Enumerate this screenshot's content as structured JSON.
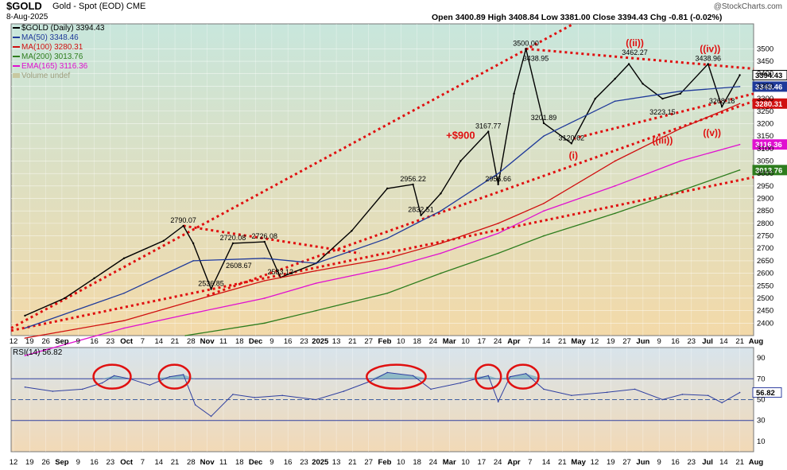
{
  "header": {
    "symbol": "$GOLD",
    "name": "Gold - Spot (EOD)",
    "exchange": "CME",
    "date": "8-Aug-2025",
    "ohlc": "Open 3400.89  High 3408.84  Low 3381.00  Close 3394.43  Chg -0.81 (-0.02%)",
    "credit": "@StockCharts.com"
  },
  "legend": [
    {
      "label": "$GOLD (Daily) 3394.43",
      "color": "#000000"
    },
    {
      "label": "MA(50) 3348.46",
      "color": "#1f3a9a"
    },
    {
      "label": "MA(100) 3280.31",
      "color": "#d01010"
    },
    {
      "label": "MA(200) 3013.76",
      "color": "#2e7d1e"
    },
    {
      "label": "EMA(165) 3116.36",
      "color": "#e010d0"
    },
    {
      "label": "Volume undef",
      "color": "#b8b890"
    }
  ],
  "colors": {
    "price": "#000000",
    "ma50": "#1f3a9a",
    "ma100": "#d01010",
    "ma200": "#2e7d1e",
    "ema165": "#e010d0",
    "trend": "#e01010",
    "rsi": "#3040a0",
    "rsi_fill": "#7ab0c0",
    "bg_top": "#c8e6dc",
    "bg_bottom": "#f3d9a8"
  },
  "chart_data": [
    {
      "type": "line",
      "title": "$GOLD Gold - Spot (EOD) CME",
      "ylim": [
        2350,
        3600
      ],
      "yticks": [
        2400,
        2450,
        2500,
        2550,
        2600,
        2650,
        2700,
        2750,
        2800,
        2850,
        2900,
        2950,
        3000,
        3050,
        3100,
        3150,
        3200,
        3250,
        3300,
        3350,
        3400,
        3450,
        3500
      ],
      "ytick_labels": [
        "2400",
        "2450",
        "2500",
        "2550",
        "2600",
        "2650",
        "2700",
        "2750",
        "2800",
        "2850",
        "2900",
        "2950",
        "3000",
        "3050",
        "3100",
        "3150",
        "3200",
        "3250",
        "3300",
        "3350",
        "3400",
        "3450",
        "3500"
      ],
      "xtick_labels": [
        "12",
        "19",
        "26",
        "Sep",
        "9",
        "16",
        "23",
        "Oct",
        "7",
        "14",
        "21",
        "28",
        "Nov",
        "11",
        "18",
        "Dec",
        "9",
        "16",
        "23",
        "2025",
        "13",
        "21",
        "27",
        "Feb",
        "10",
        "18",
        "24",
        "Mar",
        "10",
        "17",
        "24",
        "Apr",
        "7",
        "14",
        "21",
        "May",
        "12",
        "19",
        "27",
        "Jun",
        "9",
        "16",
        "23",
        "Jul",
        "14",
        "21",
        "Aug"
      ],
      "series": [
        {
          "name": "$GOLD (Daily) 3394.43",
          "key": "price",
          "x": [
            "2024-08-12",
            "2024-09-01",
            "2024-09-16",
            "2024-10-01",
            "2024-10-21",
            "2024-10-31",
            "2024-11-05",
            "2024-11-14",
            "2024-11-25",
            "2024-12-11",
            "2024-12-19",
            "2025-01-06",
            "2025-01-24",
            "2025-02-11",
            "2025-02-24",
            "2025-02-28",
            "2025-03-10",
            "2025-03-20",
            "2025-04-03",
            "2025-04-08",
            "2025-04-16",
            "2025-04-22",
            "2025-05-01",
            "2025-05-15",
            "2025-05-27",
            "2025-06-06",
            "2025-06-13",
            "2025-06-20",
            "2025-06-30",
            "2025-07-09",
            "2025-07-23",
            "2025-07-30",
            "2025-08-08"
          ],
          "values": [
            2430,
            2500,
            2580,
            2660,
            2730,
            2790,
            2720,
            2536.85,
            2720.08,
            2726.08,
            2583.12,
            2640,
            2770,
            2940,
            2956.22,
            2832.51,
            2920,
            3050,
            3167.77,
            2956.66,
            3320,
            3500,
            3201.89,
            3120.62,
            3300,
            3380,
            3438.95,
            3360,
            3300,
            3320,
            3438.96,
            3268.18,
            3394.43
          ]
        },
        {
          "name": "MA(50) 3348.46",
          "key": "ma50",
          "x": [
            "2024-08-12",
            "2024-10-01",
            "2024-11-05",
            "2024-12-11",
            "2025-01-06",
            "2025-02-11",
            "2025-03-10",
            "2025-04-08",
            "2025-05-01",
            "2025-06-06",
            "2025-07-09",
            "2025-08-08"
          ],
          "values": [
            2380,
            2520,
            2650,
            2660,
            2640,
            2740,
            2850,
            3000,
            3150,
            3290,
            3330,
            3348.46
          ]
        },
        {
          "name": "MA(100) 3280.31",
          "key": "ma100",
          "x": [
            "2024-08-12",
            "2024-10-01",
            "2024-11-05",
            "2024-12-11",
            "2025-01-06",
            "2025-02-11",
            "2025-03-10",
            "2025-04-08",
            "2025-05-01",
            "2025-06-06",
            "2025-07-09",
            "2025-08-08"
          ],
          "values": [
            2340,
            2410,
            2490,
            2570,
            2610,
            2660,
            2720,
            2800,
            2880,
            3050,
            3180,
            3280.31
          ]
        },
        {
          "name": "EMA(165) 3116.36",
          "key": "ema165",
          "x": [
            "2024-08-12",
            "2024-10-01",
            "2024-11-05",
            "2024-12-11",
            "2025-01-06",
            "2025-02-11",
            "2025-03-10",
            "2025-04-08",
            "2025-05-01",
            "2025-06-06",
            "2025-07-09",
            "2025-08-08"
          ],
          "values": [
            2270,
            2380,
            2440,
            2500,
            2560,
            2620,
            2680,
            2760,
            2850,
            2950,
            3050,
            3116.36
          ]
        },
        {
          "name": "MA(200) 3013.76",
          "key": "ma200",
          "x": [
            "2024-11-01",
            "2024-12-11",
            "2025-01-06",
            "2025-02-11",
            "2025-03-10",
            "2025-04-08",
            "2025-05-01",
            "2025-06-06",
            "2025-07-09",
            "2025-08-08"
          ],
          "values": [
            2350,
            2400,
            2450,
            2520,
            2600,
            2680,
            2750,
            2840,
            2930,
            3013.76
          ]
        }
      ],
      "trendlines": [
        {
          "name": "upper-channel",
          "x": [
            "2024-08-05",
            "2025-05-16"
          ],
          "values": [
            2380,
            3600
          ]
        },
        {
          "name": "long-support",
          "x": [
            "2024-08-05",
            "2025-08-15"
          ],
          "values": [
            2370,
            2985
          ]
        },
        {
          "name": "support-nov-apr",
          "x": [
            "2024-11-12",
            "2025-08-15"
          ],
          "values": [
            2510,
            3290
          ]
        },
        {
          "name": "support-may-aug",
          "x": [
            "2025-05-16",
            "2025-08-15"
          ],
          "values": [
            3140,
            3320
          ]
        },
        {
          "name": "resistance-apr-aug",
          "x": [
            "2025-04-22",
            "2025-08-15"
          ],
          "values": [
            3500,
            3420
          ]
        },
        {
          "name": "pennant-top",
          "x": [
            "2024-10-31",
            "2025-01-28"
          ],
          "values": [
            2790,
            2680
          ]
        }
      ],
      "price_labels": [
        {
          "text": "2790.07",
          "x": "2024-10-31",
          "y": 2790
        },
        {
          "text": "2720.08",
          "x": "2024-11-25",
          "y": 2720.08
        },
        {
          "text": "2726.08",
          "x": "2024-12-11",
          "y": 2726.08
        },
        {
          "text": "2608.67",
          "x": "2024-11-28",
          "y": 2608.67
        },
        {
          "text": "2583.12",
          "x": "2024-12-19",
          "y": 2583.12
        },
        {
          "text": "2536.85",
          "x": "2024-11-14",
          "y": 2536.85
        },
        {
          "text": "2956.22",
          "x": "2025-02-24",
          "y": 2956.22
        },
        {
          "text": "2832.51",
          "x": "2025-02-28",
          "y": 2832.51
        },
        {
          "text": "3167.77",
          "x": "2025-04-03",
          "y": 3167.77
        },
        {
          "text": "2956.66",
          "x": "2025-04-08",
          "y": 2956.66
        },
        {
          "text": "3500.00",
          "x": "2025-04-22",
          "y": 3500
        },
        {
          "text": "3438.95",
          "x": "2025-04-27",
          "y": 3438.95
        },
        {
          "text": "3201.89",
          "x": "2025-05-01",
          "y": 3201.89
        },
        {
          "text": "3120.62",
          "x": "2025-05-15",
          "y": 3120.62
        },
        {
          "text": "3462.27",
          "x": "2025-06-16",
          "y": 3462.27
        },
        {
          "text": "3223.15",
          "x": "2025-06-30",
          "y": 3223.15
        },
        {
          "text": "3438.96",
          "x": "2025-07-23",
          "y": 3438.96
        },
        {
          "text": "3268.18",
          "x": "2025-07-30",
          "y": 3268.18
        }
      ],
      "wave_labels": [
        {
          "text": "((ii))",
          "x": "2025-06-16",
          "y": 3510
        },
        {
          "text": "((iv))",
          "x": "2025-07-24",
          "y": 3487
        },
        {
          "text": "(i)",
          "x": "2025-05-16",
          "y": 3060
        },
        {
          "text": "((iii))",
          "x": "2025-06-30",
          "y": 3120
        },
        {
          "text": "((v))",
          "x": "2025-07-25",
          "y": 3150
        },
        {
          "text": "+$900",
          "x": "2025-03-20",
          "y": 3140
        }
      ],
      "right_axis_tags": [
        {
          "text": "3394.43",
          "y": 3394.43,
          "key": "price"
        },
        {
          "text": "3348.46",
          "y": 3348.46,
          "key": "ma50"
        },
        {
          "text": "3280.31",
          "y": 3280.31,
          "key": "ma100"
        },
        {
          "text": "3116.36",
          "y": 3116.36,
          "key": "ema165"
        },
        {
          "text": "3013.76",
          "y": 3013.76,
          "key": "ma200"
        }
      ]
    },
    {
      "type": "line",
      "title": "RSI(14) 56.82",
      "ylim": [
        0,
        100
      ],
      "yticks": [
        10,
        30,
        50,
        70,
        90
      ],
      "ytick_labels": [
        "10",
        "30",
        "50",
        "70",
        "90"
      ],
      "reference_lines": [
        70,
        50,
        30
      ],
      "series": [
        {
          "name": "RSI(14) 56.82",
          "key": "rsi",
          "x": [
            "2024-08-12",
            "2024-08-26",
            "2024-09-10",
            "2024-09-20",
            "2024-09-26",
            "2024-10-04",
            "2024-10-14",
            "2024-10-24",
            "2024-10-31",
            "2024-11-06",
            "2024-11-14",
            "2024-11-25",
            "2024-12-06",
            "2024-12-20",
            "2025-01-06",
            "2025-01-20",
            "2025-02-03",
            "2025-02-11",
            "2025-02-24",
            "2025-03-05",
            "2025-03-20",
            "2025-04-03",
            "2025-04-08",
            "2025-04-14",
            "2025-04-22",
            "2025-05-01",
            "2025-05-15",
            "2025-06-02",
            "2025-06-16",
            "2025-06-30",
            "2025-07-10",
            "2025-07-23",
            "2025-07-30",
            "2025-08-08"
          ],
          "values": [
            62,
            58,
            60,
            66,
            73,
            70,
            64,
            72,
            74,
            45,
            34,
            55,
            52,
            54,
            50,
            58,
            68,
            76,
            73,
            60,
            66,
            73,
            48,
            72,
            75,
            60,
            54,
            57,
            60,
            50,
            55,
            54,
            47,
            56.82
          ]
        }
      ],
      "highlights": [
        {
          "x": [
            "2024-09-18",
            "2024-10-02"
          ]
        },
        {
          "x": [
            "2024-10-21",
            "2024-11-01"
          ]
        },
        {
          "x": [
            "2025-02-03",
            "2025-02-28"
          ]
        },
        {
          "x": [
            "2025-03-30",
            "2025-04-07"
          ]
        },
        {
          "x": [
            "2025-04-15",
            "2025-04-26"
          ]
        }
      ],
      "right_axis_tags": [
        {
          "text": "56.82",
          "y": 56.82
        }
      ]
    }
  ]
}
